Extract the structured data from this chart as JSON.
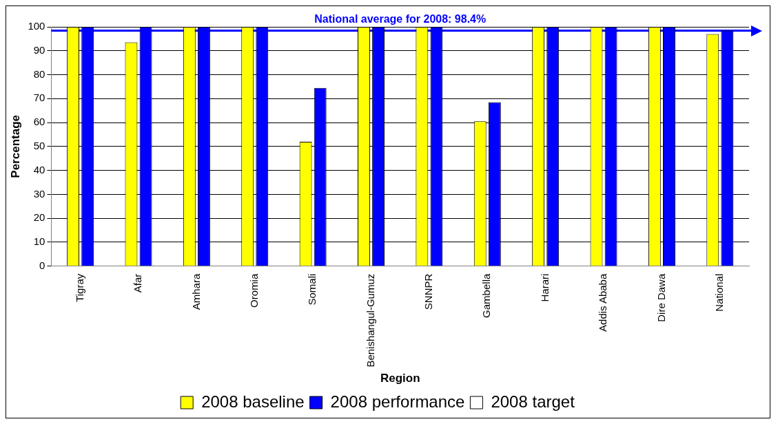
{
  "chart_data": {
    "type": "bar",
    "xlabel": "Region",
    "ylabel": "Percentage",
    "categories": [
      "Tigray",
      "Afar",
      "Amhara",
      "Oromia",
      "Somali",
      "Benishangul-Gumuz",
      "SNNPR",
      "Gambella",
      "Harari",
      "Addis Ababa",
      "Dire Dawa",
      "National"
    ],
    "series": [
      {
        "name": "2008 baseline",
        "color": "#ffff00",
        "values": [
          100,
          93.5,
          100,
          100,
          52,
          100,
          100,
          60.5,
          100,
          100,
          100,
          97
        ]
      },
      {
        "name": "2008 performance",
        "color": "#0000ff",
        "values": [
          100,
          100,
          100,
          100,
          74.5,
          100,
          100,
          68.5,
          100,
          100,
          100,
          98.4
        ]
      },
      {
        "name": "2008 target",
        "color": "#ffffff",
        "values": [
          null,
          null,
          null,
          null,
          null,
          null,
          null,
          null,
          null,
          null,
          null,
          null
        ]
      }
    ],
    "ylim": [
      0,
      100
    ],
    "yticks": [
      0,
      10,
      20,
      30,
      40,
      50,
      60,
      70,
      80,
      90,
      100
    ],
    "grid": "y",
    "legend": "bottom",
    "ref_lines": [
      {
        "axis": "y",
        "value": 98.4,
        "label": "National average for 2008: 98.4%",
        "color": "#0000ff"
      }
    ]
  }
}
